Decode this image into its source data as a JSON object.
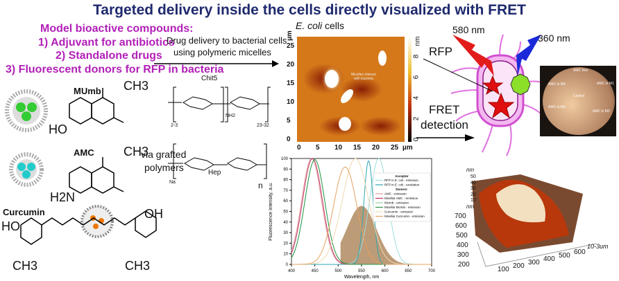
{
  "title": "Targeted delivery inside the cells directly visualized with FRET",
  "compounds": {
    "heading": "Model bioactive compounds:",
    "items": [
      "1) Adjuvant for antibiotics",
      "2) Standalone drugs",
      "3) Fluorescent donors for RFP in bacteria"
    ]
  },
  "molecules": {
    "mumb": "MUmb",
    "amc": "AMC",
    "curcumin": "Curcumin",
    "ch3": "CH3",
    "ho": "HO",
    "h2n": "H2N",
    "o": "O"
  },
  "delivery": {
    "line1": "Drug delivery to bacterial cells",
    "line2": "using polymeric micelles",
    "via": "via grafted",
    "polymers": "polymers"
  },
  "polymers": {
    "chit5": "Chit5",
    "hep": "Hep",
    "chit_sub1": "2-3",
    "chit_sub2": "23-32",
    "na": "Na",
    "n": "n",
    "nh2": "NH2",
    "nh": "NH",
    "oh": "OH"
  },
  "afm": {
    "title_italic": "E. coli",
    "title_rest": " cells",
    "annotation": [
      "Micelles interact",
      "with bacteria"
    ],
    "xticks": [
      "0",
      "5",
      "10",
      "15",
      "20",
      "25"
    ],
    "yticks": [
      "0",
      "5",
      "10",
      "15",
      "20",
      "25"
    ],
    "unit": "µm",
    "colorbar_unit": "nm",
    "colorbar_ticks": [
      "0",
      "2",
      "4",
      "6",
      "8"
    ]
  },
  "fret": {
    "wl580": "580 nm",
    "wl360": "360 nm",
    "rfp": "RFP",
    "detection1": "FRET",
    "detection2": "detection"
  },
  "plate": {
    "labels": [
      "AMC free",
      "AMC in M4",
      "AMC in M1",
      "Control",
      "AMC in M3",
      "AMC in M2"
    ]
  },
  "afm3d": {
    "zunit": "nm",
    "zticks": [
      "50",
      "40",
      "30",
      "20",
      "10"
    ],
    "yunit": "nm",
    "yticks": [
      "700",
      "600",
      "500",
      "400",
      "300",
      "200"
    ],
    "xticks": [
      "100",
      "200",
      "300",
      "400",
      "500",
      "600"
    ],
    "xunit": "10-3um"
  },
  "chart_data": {
    "type": "line",
    "xlabel": "Wavelength, nm",
    "ylabel": "Fluorescence intensity, a.u.",
    "xlim": [
      400,
      700
    ],
    "ylim": [
      0,
      100
    ],
    "xticks": [
      400,
      450,
      500,
      550,
      600,
      650,
      700
    ],
    "yticks": [
      0,
      10,
      20,
      30,
      40,
      50,
      60,
      70,
      80,
      90,
      100
    ],
    "legend": {
      "placement": "right",
      "acceptor_header": "Acceptor",
      "donors_header": "Donors:"
    },
    "series": [
      {
        "name": "RFP in E. coli - emission",
        "color": "#9fdcdc",
        "peak": 587,
        "width": 28,
        "max": 100
      },
      {
        "name": "RFP in E. coli - excitation",
        "color": "#2aa7b3",
        "peak": 565,
        "width": 14,
        "max": 98
      },
      {
        "name": "AMC - emission",
        "color": "#e0a0a0",
        "peak": 443,
        "width": 30,
        "max": 100
      },
      {
        "name": "Micellar AMC - emission",
        "color": "#c03060",
        "peak": 445,
        "width": 30,
        "max": 100
      },
      {
        "name": "MUmb - emission",
        "color": "#9ad09a",
        "peak": 450,
        "width": 30,
        "max": 99
      },
      {
        "name": "Micellar MUmb - emission",
        "color": "#2a9a4a",
        "peak": 450,
        "width": 30,
        "max": 99
      },
      {
        "name": "Curcumin - emission",
        "color": "#f0d8b0",
        "peak": 537,
        "width": 40,
        "max": 100
      },
      {
        "name": "Micellar Curcumin - emission",
        "color": "#e8a060",
        "peak": 515,
        "width": 35,
        "max": 92
      }
    ]
  }
}
